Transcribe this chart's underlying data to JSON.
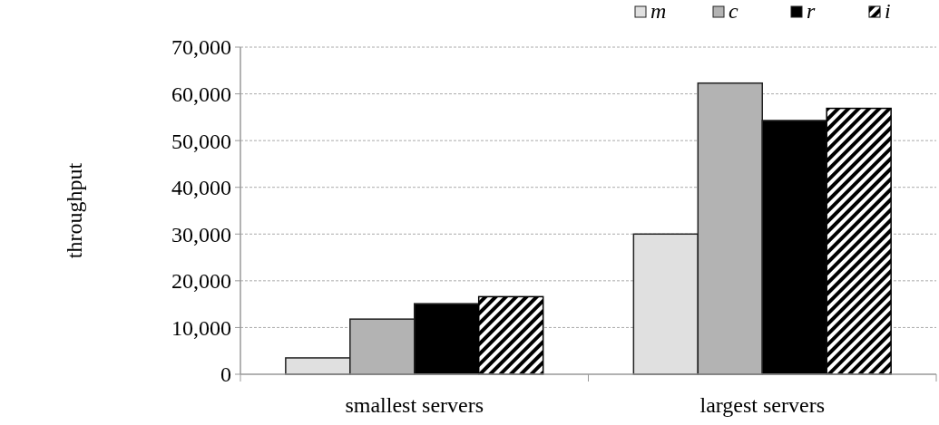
{
  "chart_data": {
    "type": "bar",
    "ylabel": "throughput",
    "categories": [
      "smallest servers",
      "largest servers"
    ],
    "series": [
      {
        "name": "m",
        "color": "#e0e0e0",
        "values": [
          3500,
          30000
        ]
      },
      {
        "name": "c",
        "color": "#b3b3b3",
        "values": [
          11800,
          62300
        ]
      },
      {
        "name": "r",
        "color": "#000000",
        "values": [
          15100,
          54300
        ]
      },
      {
        "name": "i",
        "color": "#000000",
        "values": [
          16600,
          56900
        ]
      }
    ],
    "ylim": [
      0,
      70000
    ],
    "yticks": [
      {
        "value": 0,
        "label": "0"
      },
      {
        "value": 10000,
        "label": "10,000"
      },
      {
        "value": 20000,
        "label": "20,000"
      },
      {
        "value": 30000,
        "label": "30,000"
      },
      {
        "value": 40000,
        "label": "40,000"
      },
      {
        "value": 50000,
        "label": "50,000"
      },
      {
        "value": 60000,
        "label": "60,000"
      },
      {
        "value": 70000,
        "label": "70,000"
      }
    ],
    "grid": "y",
    "legend": "top right"
  }
}
